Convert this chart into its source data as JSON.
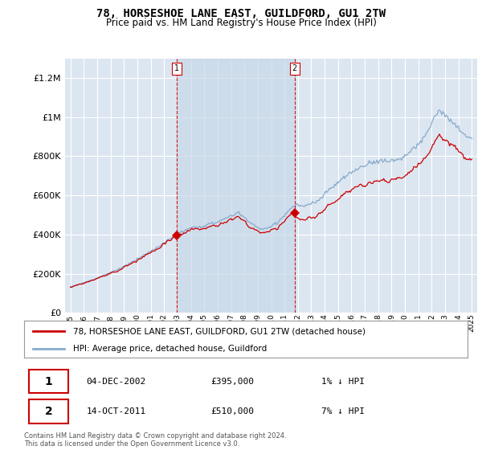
{
  "title": "78, HORSESHOE LANE EAST, GUILDFORD, GU1 2TW",
  "subtitle": "Price paid vs. HM Land Registry's House Price Index (HPI)",
  "legend_property": "78, HORSESHOE LANE EAST, GUILDFORD, GU1 2TW (detached house)",
  "legend_hpi": "HPI: Average price, detached house, Guildford",
  "transaction1": {
    "label": "1",
    "date": "04-DEC-2002",
    "price": 395000,
    "note": "1% ↓ HPI"
  },
  "transaction2": {
    "label": "2",
    "date": "14-OCT-2011",
    "price": 510000,
    "note": "7% ↓ HPI"
  },
  "copyright": "Contains HM Land Registry data © Crown copyright and database right 2024.\nThis data is licensed under the Open Government Licence v3.0.",
  "property_color": "#cc0000",
  "hpi_color": "#88aacc",
  "vline_color": "#cc0000",
  "shade_color": "#c8d8e8",
  "background_plot": "#dce6f1",
  "background_fig": "#ffffff",
  "grid_color": "#ffffff",
  "ylim": [
    0,
    1300000
  ],
  "yticks": [
    0,
    200000,
    400000,
    600000,
    800000,
    1000000,
    1200000
  ],
  "t1_year": 2002.917,
  "t2_year": 2011.75
}
